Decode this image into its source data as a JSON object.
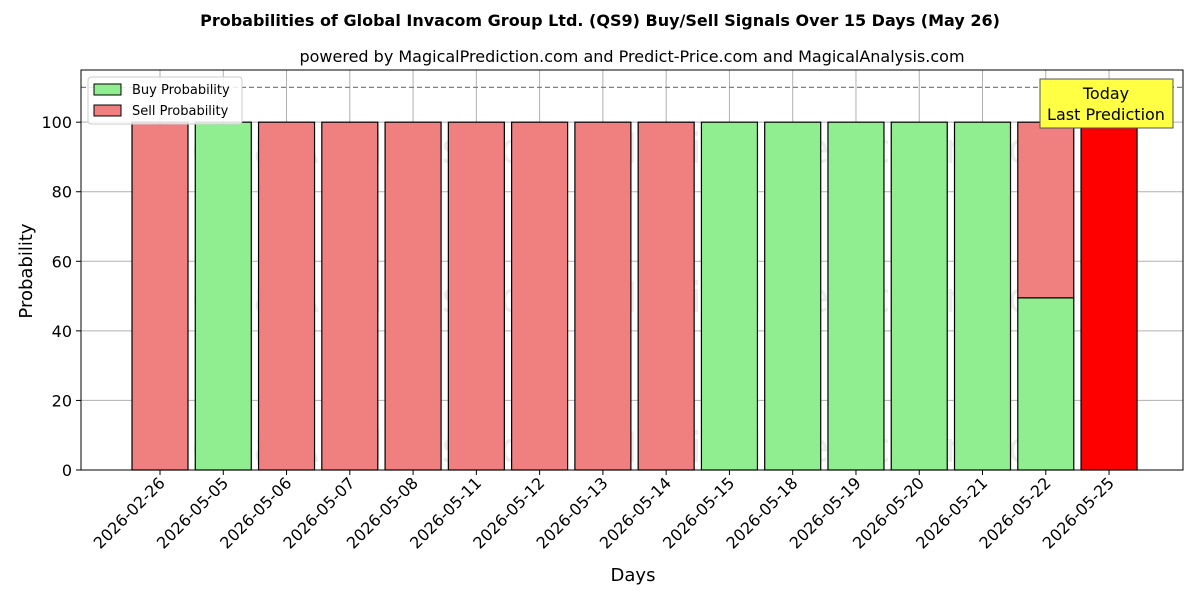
{
  "chart_data": {
    "type": "bar",
    "title": "Probabilities of Global Invacom Group Ltd. (QS9) Buy/Sell Signals Over 15 Days (May 26)",
    "subtitle": "powered by MagicalPrediction.com and Predict-Price.com and MagicalAnalysis.com",
    "xlabel": "Days",
    "ylabel": "Probability",
    "ylim": [
      0,
      115
    ],
    "yticks": [
      0,
      20,
      40,
      60,
      80,
      100
    ],
    "grid": true,
    "stacked": true,
    "reference_line": 110,
    "legend_placement": "top-left",
    "categories": [
      "2026-02-26",
      "2026-05-05",
      "2026-05-06",
      "2026-05-07",
      "2026-05-08",
      "2026-05-11",
      "2026-05-12",
      "2026-05-13",
      "2026-05-14",
      "2026-05-15",
      "2026-05-18",
      "2026-05-19",
      "2026-05-20",
      "2026-05-21",
      "2026-05-22",
      "2026-05-25"
    ],
    "series": [
      {
        "name": "Buy Probability",
        "color": "#90ee90",
        "values": [
          0,
          100,
          0,
          0,
          0,
          0,
          0,
          0,
          0,
          100,
          100,
          100,
          100,
          100,
          49.5,
          0
        ]
      },
      {
        "name": "Sell Probability",
        "color": "#f08080",
        "values": [
          100,
          0,
          100,
          100,
          100,
          100,
          100,
          100,
          100,
          0,
          0,
          0,
          0,
          0,
          50.5,
          100
        ]
      }
    ],
    "highlight": {
      "category": "2026-05-25",
      "color": "#ff0000"
    },
    "annotation": {
      "lines": [
        "Today",
        "Last Prediction"
      ],
      "background": "#ffff44"
    },
    "watermarks": [
      "MagicalAnalysis.com",
      "MagicalPrediction.com"
    ]
  }
}
